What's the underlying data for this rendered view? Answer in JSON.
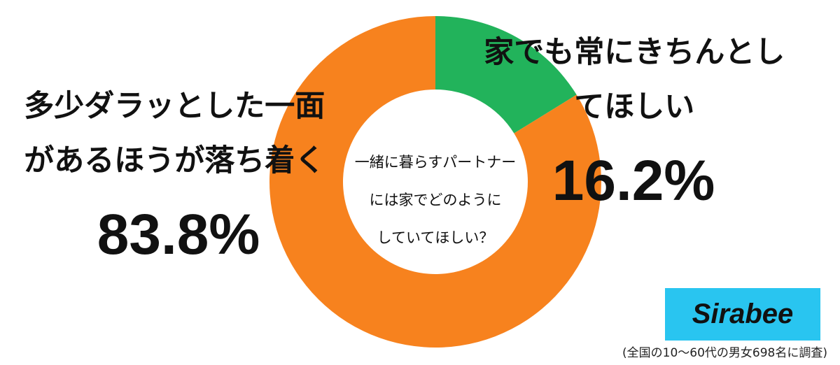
{
  "chart_data": {
    "type": "donut",
    "center_text": [
      "一緒に暮らすパートナー",
      "には家でどのように",
      "していてほしい？"
    ],
    "categories": [
      "家でも常にきちんとしてほしい",
      "多少ダラッとした一面があるほうが落ち着く"
    ],
    "values": [
      16.2,
      83.8
    ],
    "value_labels": [
      "16.2%",
      "83.8%"
    ],
    "colors": [
      "#22b35b",
      "#f7821e"
    ],
    "logo": "Sirabee",
    "note": "(全国の10〜60代の男女698名に調査)"
  }
}
